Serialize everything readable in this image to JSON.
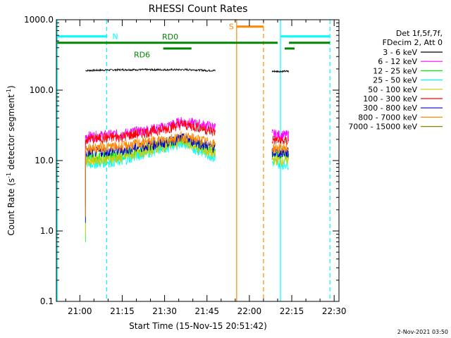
{
  "chart_data": {
    "type": "line",
    "title": "RHESSI Count Rates",
    "xlabel": "Start Time (15-Nov-15 20:51:42)",
    "ylabel_parts": [
      "Count Rate (s",
      "-1",
      " detector segment",
      "-1",
      ")"
    ],
    "yscale": "log",
    "ylim": [
      0.1,
      1000
    ],
    "xlim_minutes": [
      51.7,
      151.7
    ],
    "x_ticks": [
      {
        "label": "21:00",
        "minute": 60
      },
      {
        "label": "21:15",
        "minute": 75
      },
      {
        "label": "21:30",
        "minute": 90
      },
      {
        "label": "21:45",
        "minute": 105
      },
      {
        "label": "22:00",
        "minute": 120
      },
      {
        "label": "22:15",
        "minute": 135
      },
      {
        "label": "22:30",
        "minute": 150
      }
    ],
    "y_ticks": [
      {
        "label": "0.1",
        "value": 0.1
      },
      {
        "label": "1.0",
        "value": 1
      },
      {
        "label": "10.0",
        "value": 10
      },
      {
        "label": "100.0",
        "value": 100
      },
      {
        "label": "1000.0",
        "value": 1000
      }
    ],
    "legend_header": [
      "Det 1f,5f,7f,",
      "FDecim 2, Att 0"
    ],
    "legend_position": "right",
    "series": [
      {
        "name": "3 - 6 keV",
        "color": "#000000",
        "points": [
          [
            62,
            190
          ],
          [
            75,
            195
          ],
          [
            90,
            195
          ],
          [
            100,
            195
          ],
          [
            105,
            190
          ],
          [
            108,
            190
          ]
        ],
        "points2": [
          [
            128,
            185
          ],
          [
            131,
            185
          ],
          [
            134,
            185
          ]
        ]
      },
      {
        "name": "6 - 12 keV",
        "color": "#ff00ff",
        "points": [
          [
            62,
            22
          ],
          [
            75,
            24
          ],
          [
            90,
            30
          ],
          [
            96,
            36
          ],
          [
            102,
            33
          ],
          [
            108,
            30
          ]
        ],
        "points2": [
          [
            128,
            24
          ],
          [
            131,
            23
          ],
          [
            134,
            23
          ]
        ]
      },
      {
        "name": "12 - 25 keV",
        "color": "#00ee00",
        "points": [
          [
            62,
            11
          ],
          [
            75,
            12
          ],
          [
            90,
            17
          ],
          [
            96,
            20
          ],
          [
            102,
            17
          ],
          [
            108,
            14
          ]
        ],
        "points2": [
          [
            128,
            12
          ],
          [
            131,
            12
          ],
          [
            134,
            12
          ]
        ]
      },
      {
        "name": "25 - 50 keV",
        "color": "#00ffff",
        "points": [
          [
            62,
            9
          ],
          [
            75,
            10
          ],
          [
            90,
            15
          ],
          [
            96,
            18
          ],
          [
            102,
            14
          ],
          [
            108,
            11
          ]
        ],
        "points2": [
          [
            128,
            9.5
          ],
          [
            131,
            9
          ],
          [
            134,
            9
          ]
        ]
      },
      {
        "name": "50 - 100 keV",
        "color": "#cccc00",
        "points": [
          [
            62,
            10
          ],
          [
            75,
            11
          ],
          [
            90,
            16
          ],
          [
            96,
            19
          ],
          [
            102,
            15
          ],
          [
            108,
            12
          ]
        ],
        "points2": [
          [
            128,
            10.5
          ],
          [
            131,
            10
          ],
          [
            134,
            10
          ]
        ]
      },
      {
        "name": "100 - 300 keV",
        "color": "#ff0000",
        "points": [
          [
            62,
            20
          ],
          [
            75,
            22
          ],
          [
            90,
            28
          ],
          [
            96,
            33
          ],
          [
            102,
            30
          ],
          [
            108,
            25
          ]
        ],
        "points2": [
          [
            128,
            20
          ],
          [
            131,
            19
          ],
          [
            134,
            19
          ]
        ]
      },
      {
        "name": "300 - 800 keV",
        "color": "#0000cc",
        "points": [
          [
            62,
            13
          ],
          [
            75,
            14
          ],
          [
            90,
            18
          ],
          [
            96,
            21
          ],
          [
            102,
            18
          ],
          [
            108,
            15
          ]
        ],
        "points2": [
          [
            128,
            13
          ],
          [
            131,
            13
          ],
          [
            134,
            13
          ]
        ]
      },
      {
        "name": "800 - 7000 keV",
        "color": "#ff8800",
        "points": [
          [
            62,
            15
          ],
          [
            75,
            16
          ],
          [
            90,
            20
          ],
          [
            96,
            22
          ],
          [
            102,
            20
          ],
          [
            108,
            17
          ]
        ],
        "points2": [
          [
            128,
            15
          ],
          [
            131,
            15
          ],
          [
            134,
            15
          ]
        ]
      },
      {
        "name": "7000 - 15000 keV",
        "color": "#888800",
        "points": [],
        "points2": []
      }
    ],
    "annotations": {
      "cyan": {
        "color": "#00ffff",
        "label": "N",
        "solid_minutes": [
          52,
          131
        ],
        "dashed_minutes": [
          69.5,
          148.5
        ],
        "bar_segments": [
          [
            52,
            69.5
          ],
          [
            131,
            148.5
          ]
        ],
        "bar_value": 580
      },
      "orange": {
        "color": "#ff8800",
        "label": "S",
        "solid_minutes": [
          115.5
        ],
        "dashed_minutes": [
          125
        ],
        "bar_segments": [
          [
            115.5,
            125
          ]
        ],
        "bar_value": 800
      },
      "green": {
        "color": "#008800",
        "labels": [
          {
            "text": "RD0",
            "minute": 92
          },
          {
            "text": "RD6",
            "minute": 82
          }
        ],
        "bar_segments": [
          [
            52,
            89.5
          ],
          [
            89.5,
            130
          ],
          [
            134,
            148.5
          ]
        ],
        "bar2_segments": [
          [
            89.5,
            99.5
          ],
          [
            132.5,
            136
          ]
        ],
        "bar_value": 470,
        "bar2_value": 390
      }
    },
    "footer_date": "2-Nov-2021 03:50"
  }
}
